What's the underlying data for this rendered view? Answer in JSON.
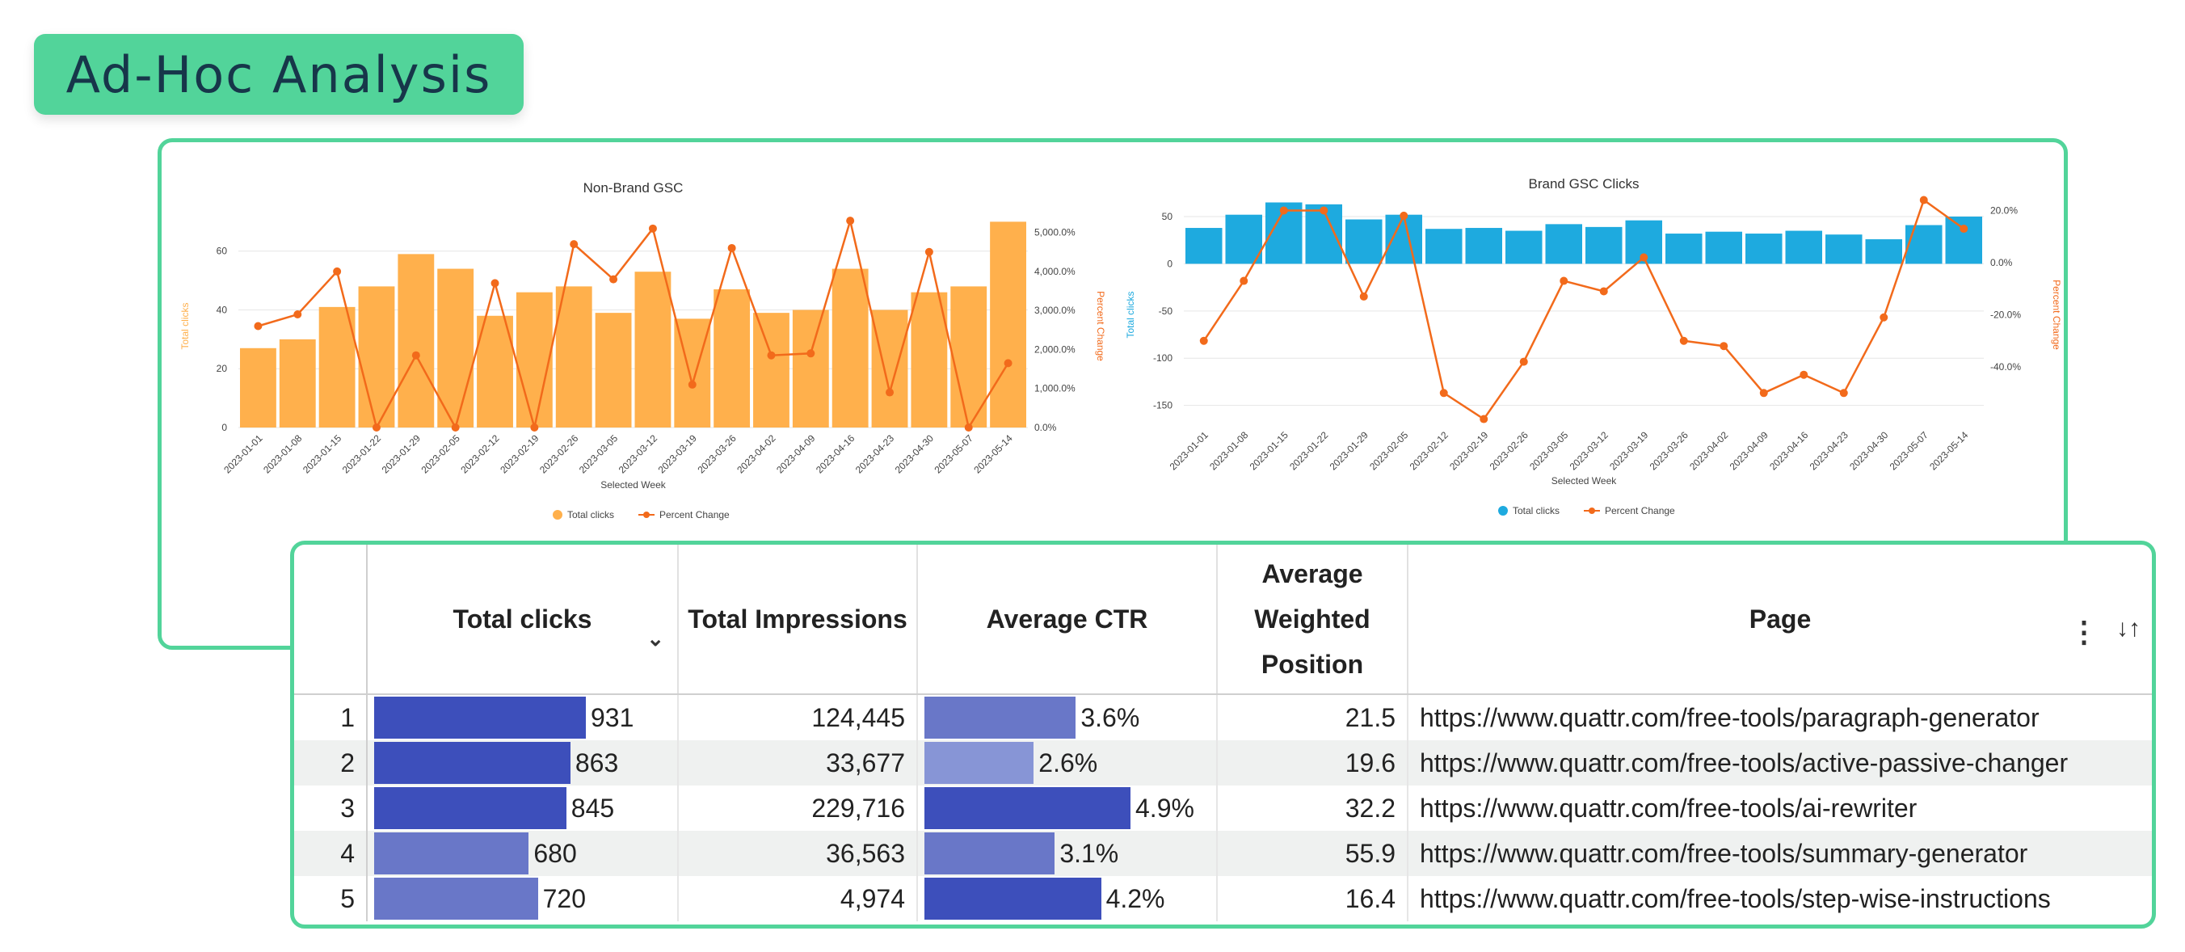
{
  "header": {
    "title": "Ad-Hoc Analysis"
  },
  "colors": {
    "accent": "#52d49a",
    "orange_bar": "#ffb04c",
    "orange_line": "#f26a1b",
    "blue_bar": "#1eaadf",
    "table_bar_dark": "#3d4fbb",
    "table_bar_mid": "#6977c8",
    "table_bar_light": "#8795d6"
  },
  "chart_data": [
    {
      "type": "bar",
      "title": "Non-Brand GSC",
      "xlabel": "Selected Week",
      "ylabel": "Total clicks",
      "y2label": "Percent Change",
      "categories": [
        "2023-01-01",
        "2023-01-08",
        "2023-01-15",
        "2023-01-22",
        "2023-01-29",
        "2023-02-05",
        "2023-02-12",
        "2023-02-19",
        "2023-02-26",
        "2023-03-05",
        "2023-03-12",
        "2023-03-19",
        "2023-03-26",
        "2023-04-02",
        "2023-04-09",
        "2023-04-16",
        "2023-04-23",
        "2023-04-30",
        "2023-05-07",
        "2023-05-14"
      ],
      "yticks": [
        "0",
        "20",
        "40",
        "60"
      ],
      "y2ticks": [
        "0.0%",
        "1,000.0%",
        "2,000.0%",
        "3,000.0%",
        "4,000.0%",
        "5,000.0%"
      ],
      "ylim": [
        0,
        69
      ],
      "y2lim": [
        0,
        5200
      ],
      "legend": [
        "Total clicks",
        "Percent Change"
      ],
      "legend_position": "bottom",
      "series": [
        {
          "name": "Total clicks",
          "type": "bar",
          "axis": "left",
          "values": [
            27,
            30,
            41,
            48,
            59,
            54,
            38,
            46,
            48,
            39,
            53,
            37,
            47,
            39,
            40,
            54,
            40,
            46,
            48,
            70
          ]
        },
        {
          "name": "Percent Change",
          "type": "line",
          "axis": "right",
          "values": [
            2600,
            2900,
            4000,
            0,
            1850,
            0,
            3700,
            0,
            4700,
            3800,
            5100,
            1100,
            4600,
            1850,
            1900,
            5300,
            900,
            4500,
            0,
            1650
          ]
        }
      ]
    },
    {
      "type": "bar",
      "title": "Brand GSC Clicks",
      "xlabel": "Selected Week",
      "ylabel": "Total clicks",
      "y2label": "Percent Change",
      "categories": [
        "2023-01-01",
        "2023-01-08",
        "2023-01-15",
        "2023-01-22",
        "2023-01-29",
        "2023-02-05",
        "2023-02-12",
        "2023-02-19",
        "2023-02-26",
        "2023-03-05",
        "2023-03-12",
        "2023-03-19",
        "2023-03-26",
        "2023-04-02",
        "2023-04-09",
        "2023-04-16",
        "2023-04-23",
        "2023-04-30",
        "2023-05-07",
        "2023-05-14"
      ],
      "yticks": [
        "-150",
        "-100",
        "-50",
        "0",
        "50"
      ],
      "y2ticks": [
        "-40.0%",
        "-20.0%",
        "0.0%",
        "20.0%"
      ],
      "ylim": [
        -170,
        62
      ],
      "y2lim": [
        -62,
        22
      ],
      "legend": [
        "Total clicks",
        "Percent Change"
      ],
      "legend_position": "bottom",
      "series": [
        {
          "name": "Total clicks",
          "type": "bar",
          "axis": "left",
          "values": [
            38,
            52,
            65,
            63,
            47,
            52,
            37,
            38,
            35,
            42,
            39,
            46,
            32,
            34,
            32,
            35,
            31,
            26,
            41,
            50
          ]
        },
        {
          "name": "Percent Change",
          "type": "line",
          "axis": "right",
          "values": [
            -30,
            -7,
            20,
            20,
            -13,
            18,
            -50,
            -60,
            -38,
            -7,
            -11,
            2,
            -30,
            -32,
            -50,
            -43,
            -50,
            -21,
            24,
            13
          ]
        }
      ]
    }
  ],
  "table": {
    "headers": {
      "clicks": "Total clicks",
      "impressions": "Total Impressions",
      "ctr": "Average CTR",
      "position_1": "Average",
      "position_2": "Weighted",
      "position_3": "Position",
      "page": "Page"
    },
    "rows": [
      {
        "idx": "1",
        "clicks": "931",
        "clicks_value": 931,
        "impressions": "124,445",
        "ctr": "3.6%",
        "ctr_value": 3.6,
        "position": "21.5",
        "page": "https://www.quattr.com/free-tools/paragraph-generator"
      },
      {
        "idx": "2",
        "clicks": "863",
        "clicks_value": 863,
        "impressions": "33,677",
        "ctr": "2.6%",
        "ctr_value": 2.6,
        "position": "19.6",
        "page": "https://www.quattr.com/free-tools/active-passive-changer"
      },
      {
        "idx": "3",
        "clicks": "845",
        "clicks_value": 845,
        "impressions": "229,716",
        "ctr": "4.9%",
        "ctr_value": 4.9,
        "position": "32.2",
        "page": "https://www.quattr.com/free-tools/ai-rewriter"
      },
      {
        "idx": "4",
        "clicks": "680",
        "clicks_value": 680,
        "impressions": "36,563",
        "ctr": "3.1%",
        "ctr_value": 3.1,
        "position": "55.9",
        "page": "https://www.quattr.com/free-tools/summary-generator"
      },
      {
        "idx": "5",
        "clicks": "720",
        "clicks_value": 720,
        "impressions": "4,974",
        "ctr": "4.2%",
        "ctr_value": 4.2,
        "position": "16.4",
        "page": "https://www.quattr.com/free-tools/step-wise-instructions"
      }
    ]
  }
}
